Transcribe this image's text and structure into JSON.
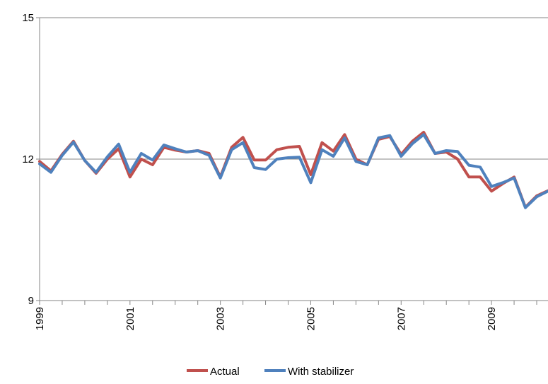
{
  "chart_data": {
    "type": "line",
    "title": "",
    "xlabel": "",
    "ylabel": "",
    "ylim": [
      9,
      15
    ],
    "yticks": [
      9,
      12,
      15
    ],
    "grid": "horizontal",
    "legend_position": "bottom",
    "x_range": [
      1999.0,
      2010.25
    ],
    "x_ticks": [
      "1999",
      "2001",
      "2003",
      "2005",
      "2007",
      "2009"
    ],
    "x_tick_step": 0.5,
    "x": [
      1999.0,
      1999.25,
      1999.5,
      1999.75,
      2000.0,
      2000.25,
      2000.5,
      2000.75,
      2001.0,
      2001.25,
      2001.5,
      2001.75,
      2002.0,
      2002.25,
      2002.5,
      2002.75,
      2003.0,
      2003.25,
      2003.5,
      2003.75,
      2004.0,
      2004.25,
      2004.5,
      2004.75,
      2005.0,
      2005.25,
      2005.5,
      2005.75,
      2006.0,
      2006.25,
      2006.5,
      2006.75,
      2007.0,
      2007.25,
      2007.5,
      2007.75,
      2008.0,
      2008.25,
      2008.5,
      2008.75,
      2009.0,
      2009.25,
      2009.5,
      2009.75,
      2010.0,
      2010.25
    ],
    "series": [
      {
        "name": "Actual",
        "color": "#C0504D",
        "values": [
          11.95,
          11.75,
          12.1,
          12.38,
          11.97,
          11.7,
          12.0,
          12.22,
          11.62,
          12.0,
          11.88,
          12.25,
          12.19,
          12.15,
          12.18,
          12.12,
          11.62,
          12.25,
          12.46,
          11.98,
          11.98,
          12.2,
          12.25,
          12.27,
          11.67,
          12.35,
          12.17,
          12.52,
          12.0,
          11.88,
          12.42,
          12.48,
          12.1,
          12.38,
          12.57,
          12.12,
          12.15,
          12.0,
          11.62,
          11.62,
          11.32,
          11.48,
          11.62,
          10.98,
          11.22,
          11.33
        ]
      },
      {
        "name": "With stabilizer",
        "color": "#4F81BD",
        "values": [
          11.9,
          11.72,
          12.08,
          12.36,
          11.97,
          11.72,
          12.05,
          12.32,
          11.72,
          12.12,
          11.98,
          12.3,
          12.22,
          12.15,
          12.18,
          12.08,
          11.6,
          12.2,
          12.35,
          11.82,
          11.78,
          12.0,
          12.03,
          12.04,
          11.5,
          12.2,
          12.06,
          12.45,
          11.95,
          11.88,
          12.45,
          12.5,
          12.06,
          12.33,
          12.52,
          12.12,
          12.18,
          12.16,
          11.87,
          11.83,
          11.42,
          11.5,
          11.6,
          10.97,
          11.2,
          11.32
        ]
      }
    ]
  }
}
